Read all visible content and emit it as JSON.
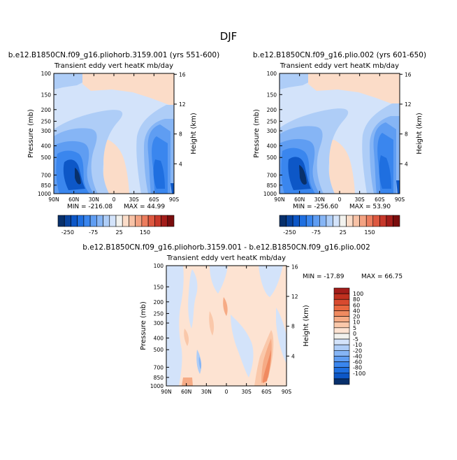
{
  "page": {
    "title": "DJF"
  },
  "chart_data": [
    {
      "type": "heatmap",
      "id": "left",
      "title": "b.e12.B1850CN.f09_g16.pliohorb.3159.001 (yrs 551-600)",
      "subtitle": "Transient eddy vert heatK mb/day",
      "xlabel": "",
      "ylabel": "Pressure (mb)",
      "y2label": "Height (km)",
      "x_ticks": [
        "90N",
        "60N",
        "30N",
        "0",
        "30S",
        "60S",
        "90S"
      ],
      "y_ticks": [
        "100",
        "150",
        "200",
        "250",
        "300",
        "400",
        "500",
        "700",
        "850",
        "1000"
      ],
      "y2_ticks": [
        "16",
        "12",
        "8",
        "4"
      ],
      "min_label": "MIN = -216.08",
      "max_label": "MAX =  44.99",
      "min": -216.08,
      "max": 44.99,
      "colorbar": {
        "orientation": "horizontal",
        "tick_labels": [
          "-250",
          "-75",
          "25",
          "150"
        ],
        "colors": [
          "#08306b",
          "#08439e",
          "#0d57c7",
          "#1f6fe0",
          "#3a86ee",
          "#5f9df2",
          "#86b5f5",
          "#aecdf7",
          "#d3e3fa",
          "#f2f2ee",
          "#fbdcc8",
          "#f8c2a6",
          "#f3a282",
          "#ec7d5e",
          "#dd5840",
          "#c7382a",
          "#a31d1a",
          "#7a0d0d"
        ]
      }
    },
    {
      "type": "heatmap",
      "id": "right",
      "title": "b.e12.B1850CN.f09_g16.plio.002 (yrs 601-650)",
      "subtitle": "Transient eddy vert heatK mb/day",
      "xlabel": "",
      "ylabel": "Pressure (mb)",
      "y2label": "Height (km)",
      "x_ticks": [
        "90N",
        "60N",
        "30N",
        "0",
        "30S",
        "60S",
        "90S"
      ],
      "y_ticks": [
        "100",
        "150",
        "200",
        "250",
        "300",
        "400",
        "500",
        "700",
        "850",
        "1000"
      ],
      "y2_ticks": [
        "16",
        "12",
        "8",
        "4"
      ],
      "min_label": "MIN = -256.60",
      "max_label": "MAX =  53.90",
      "min": -256.6,
      "max": 53.9,
      "colorbar": {
        "orientation": "horizontal",
        "tick_labels": [
          "-250",
          "-75",
          "25",
          "150"
        ],
        "colors": [
          "#08306b",
          "#08439e",
          "#0d57c7",
          "#1f6fe0",
          "#3a86ee",
          "#5f9df2",
          "#86b5f5",
          "#aecdf7",
          "#d3e3fa",
          "#f2f2ee",
          "#fbdcc8",
          "#f8c2a6",
          "#f3a282",
          "#ec7d5e",
          "#dd5840",
          "#c7382a",
          "#a31d1a",
          "#7a0d0d"
        ]
      }
    },
    {
      "type": "heatmap",
      "id": "diff",
      "title": "b.e12.B1850CN.f09_g16.pliohorb.3159.001 - b.e12.B1850CN.f09_g16.plio.002",
      "subtitle": "Transient eddy vert heatK mb/day",
      "xlabel": "",
      "ylabel": "Pressure (mb)",
      "y2label": "Height (km)",
      "x_ticks": [
        "90N",
        "60N",
        "30N",
        "0",
        "30S",
        "60S",
        "90S"
      ],
      "y_ticks": [
        "100",
        "150",
        "200",
        "250",
        "300",
        "400",
        "500",
        "700",
        "850",
        "1000"
      ],
      "y2_ticks": [
        "16",
        "12",
        "8",
        "4"
      ],
      "min_label": "MIN = -17.89",
      "max_label": "MAX =  66.75",
      "min": -17.89,
      "max": 66.75,
      "colorbar": {
        "orientation": "vertical",
        "tick_labels": [
          "100",
          "80",
          "60",
          "40",
          "20",
          "10",
          "5",
          "0",
          "-5",
          "-10",
          "-20",
          "-40",
          "-60",
          "-80",
          "-100"
        ],
        "colors": [
          "#a31d1a",
          "#c0301f",
          "#d84a2f",
          "#e8673f",
          "#f08a60",
          "#f6ab85",
          "#fac8aa",
          "#fde3d2",
          "#f2f2ee",
          "#d3e3fa",
          "#aecdf7",
          "#86b5f5",
          "#5f9df2",
          "#3a86ee",
          "#1f6fe0",
          "#0d57c7",
          "#08306b"
        ]
      }
    }
  ]
}
